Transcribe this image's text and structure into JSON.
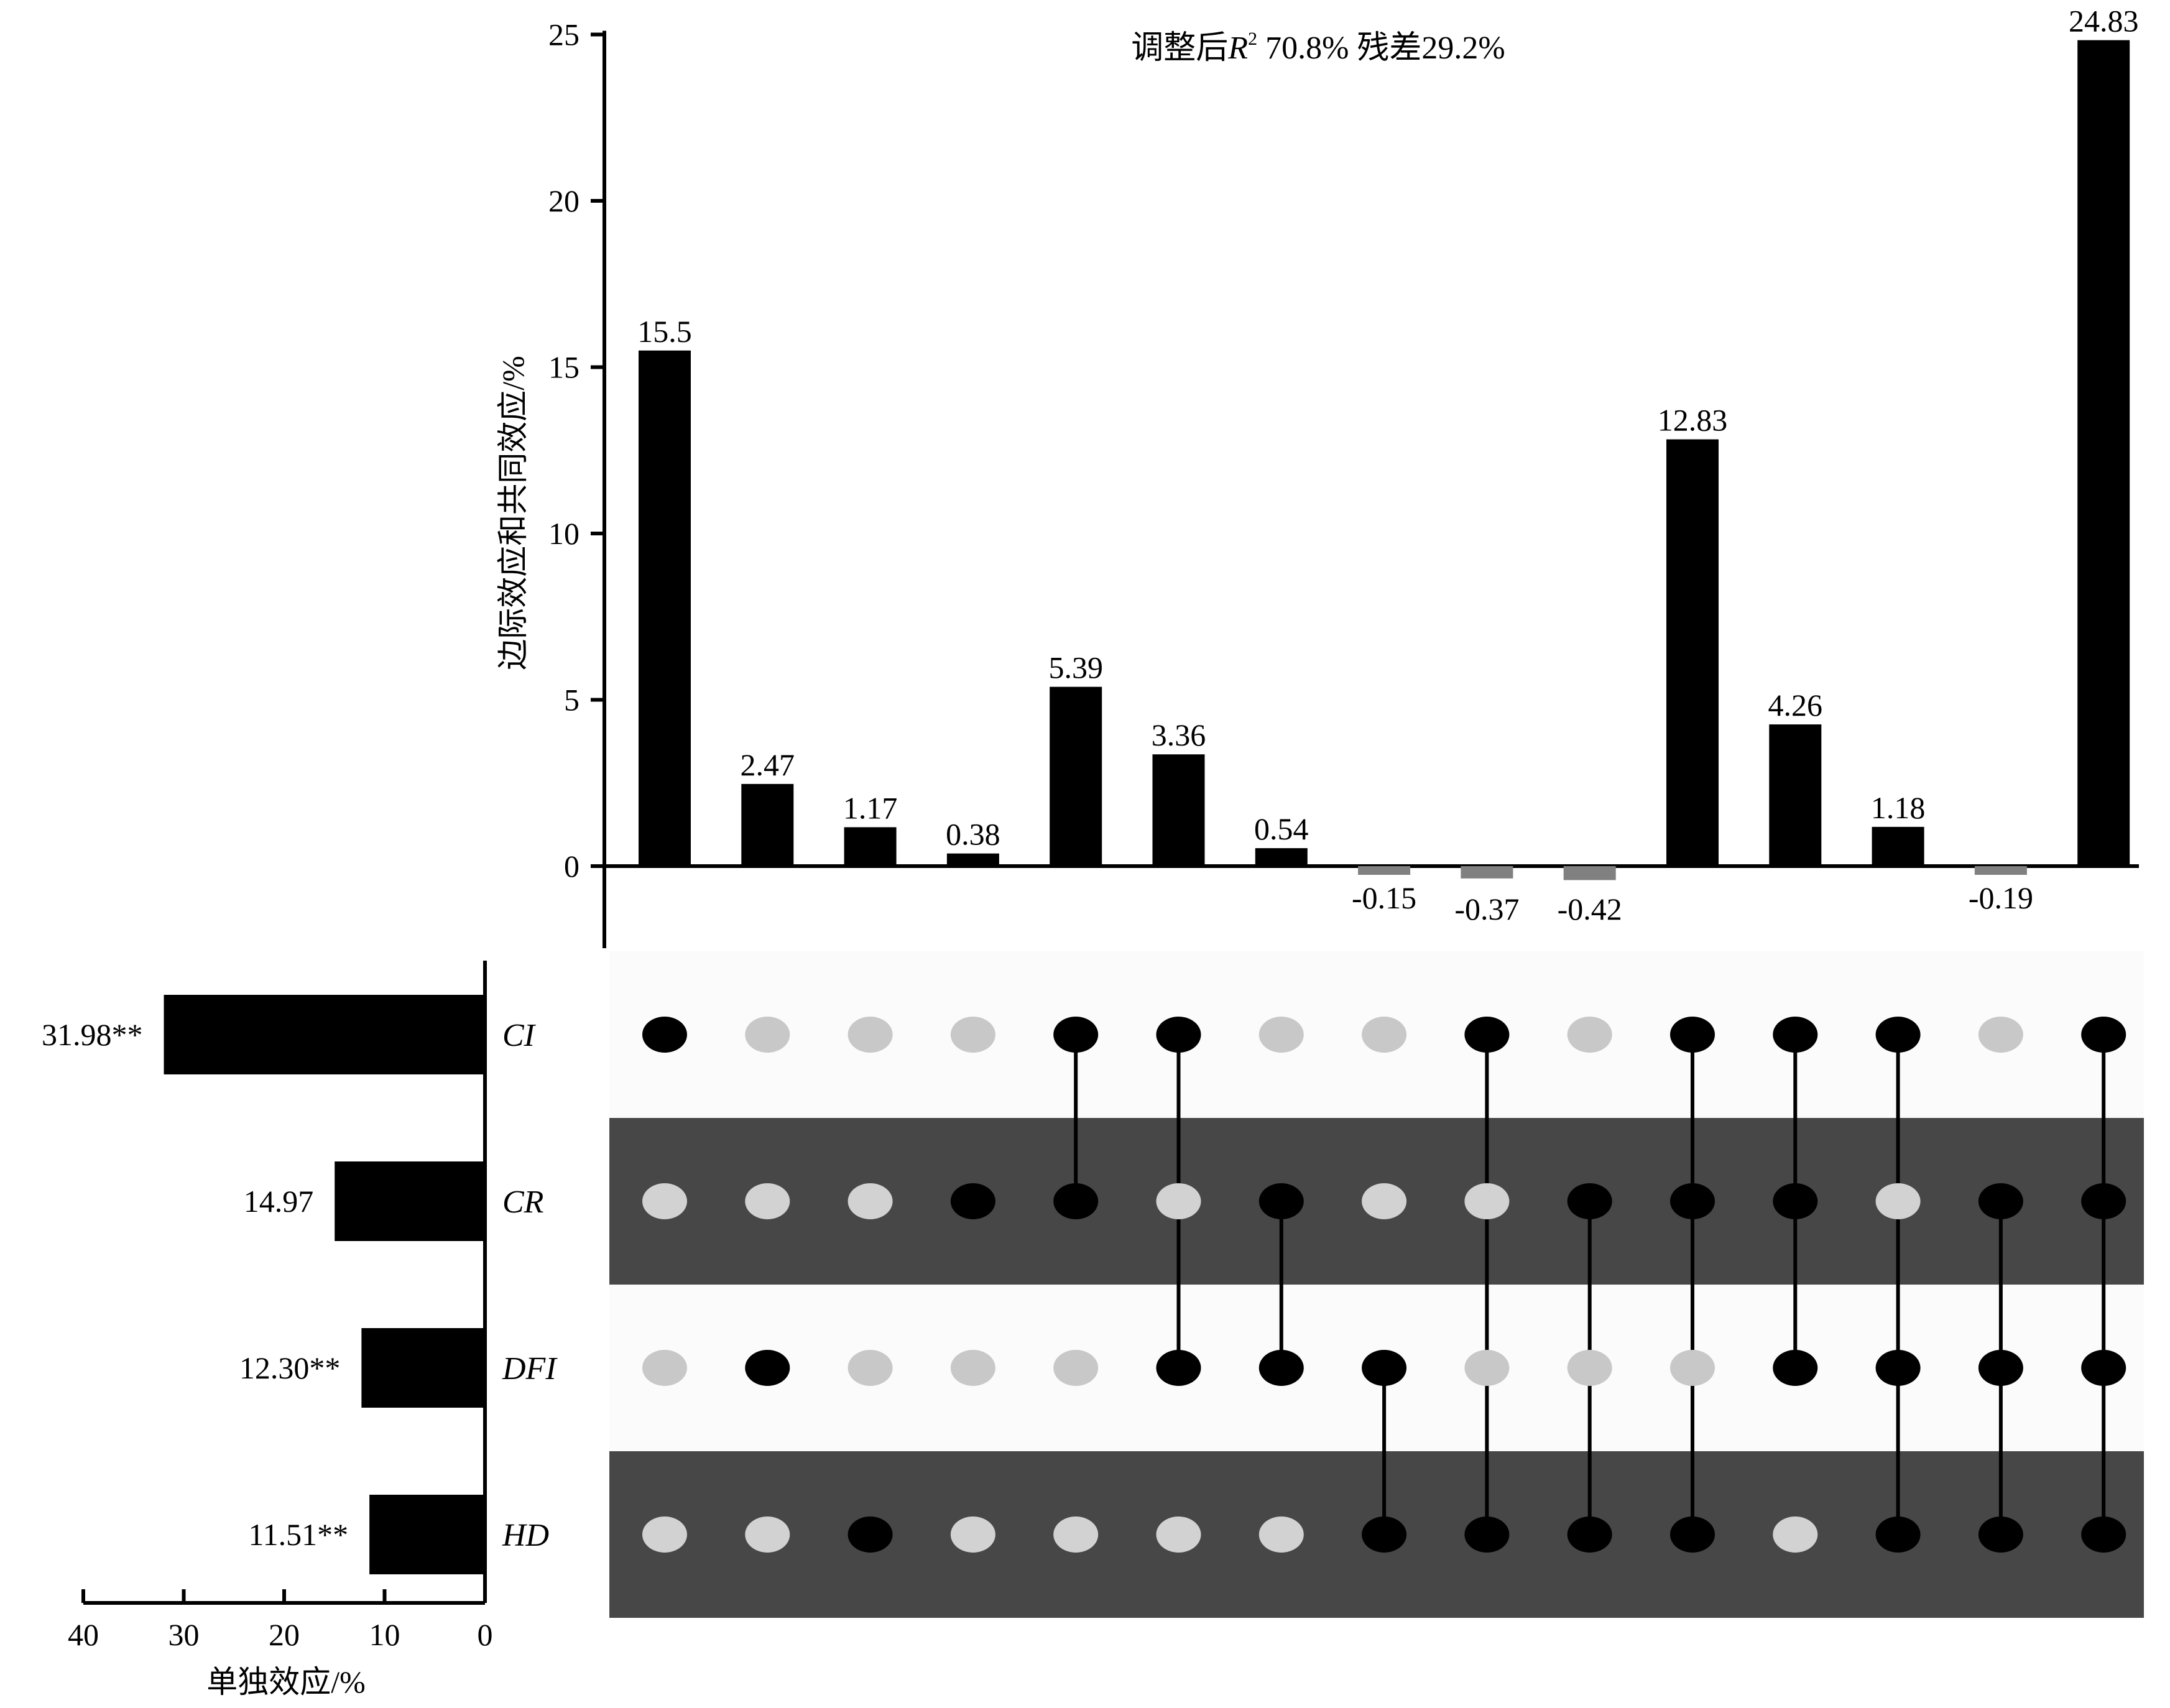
{
  "chart_data": [
    {
      "type": "bar",
      "title": "调整后R² 70.8%   残差29.2%",
      "title_parts": {
        "prefix": "调整后",
        "r": "R",
        "sup": "2",
        "rest": " 70.8%   残差29.2%"
      },
      "ylabel": "边际效应和共同效应/%",
      "xlabel": "",
      "ylim": [
        -2.5,
        25
      ],
      "yticks": [
        0,
        5,
        10,
        15,
        20,
        25
      ],
      "values": [
        15.5,
        2.47,
        1.17,
        0.38,
        5.39,
        3.36,
        0.54,
        -0.15,
        -0.37,
        -0.42,
        12.83,
        4.26,
        1.18,
        -0.19,
        24.83
      ],
      "value_labels": [
        "15.5",
        "2.47",
        "1.17",
        "0.38",
        "5.39",
        "3.36",
        "0.54",
        "-0.15",
        "-0.37",
        "-0.42",
        "12.83",
        "4.26",
        "1.18",
        "-0.19",
        "24.83"
      ],
      "colors": {
        "positive": "#000000",
        "negative": "#808080"
      },
      "grid": false
    },
    {
      "type": "bar",
      "orientation": "horizontal",
      "xlabel": "单独效应/%",
      "xlim": [
        40,
        0
      ],
      "xticks": [
        40,
        30,
        20,
        10,
        0
      ],
      "categories": [
        "CI",
        "CR",
        "DFI",
        "HD"
      ],
      "values": [
        31.98,
        14.97,
        12.3,
        11.51
      ],
      "value_labels": [
        "31.98**",
        "14.97",
        "12.30**",
        "11.51**"
      ],
      "color": "#000000"
    },
    {
      "type": "table",
      "description": "combination matrix",
      "rows": [
        "CI",
        "CR",
        "DFI",
        "HD"
      ],
      "membership": [
        [
          "CI"
        ],
        [
          "DFI"
        ],
        [
          "HD"
        ],
        [
          "CR"
        ],
        [
          "CI",
          "CR"
        ],
        [
          "CI",
          "DFI"
        ],
        [
          "CR",
          "DFI"
        ],
        [
          "DFI",
          "HD"
        ],
        [
          "CI",
          "HD"
        ],
        [
          "CR",
          "HD"
        ],
        [
          "CI",
          "CR",
          "HD"
        ],
        [
          "CI",
          "CR",
          "DFI"
        ],
        [
          "CI",
          "DFI",
          "HD"
        ],
        [
          "CR",
          "DFI",
          "HD"
        ],
        [
          "CI",
          "CR",
          "DFI",
          "HD"
        ]
      ],
      "colors": {
        "active": "#000000",
        "inactive_light_row": "#c8c8c8",
        "inactive_dark_row": "#d2d2d2",
        "row_light": "#fbfbfb",
        "row_dark": "#474747"
      }
    }
  ]
}
